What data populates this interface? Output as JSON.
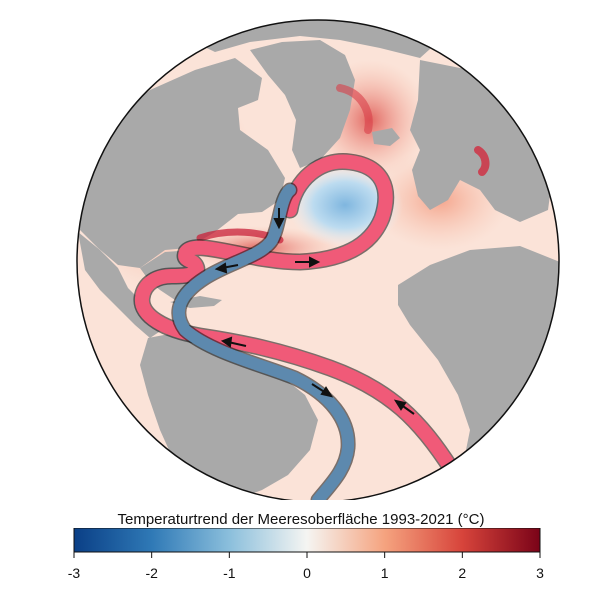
{
  "legend": {
    "title": "Temperaturtrend der Meeresoberfläche 1993-2021 (°C)",
    "ticks": [
      "-3",
      "-2",
      "-1",
      "0",
      "1",
      "2",
      "3"
    ],
    "range": [
      -3,
      3
    ],
    "colors": [
      "#0a3f86",
      "#2f79b6",
      "#8bbfdc",
      "#f5f5f2",
      "#f5a37f",
      "#d7443b",
      "#7a0318"
    ]
  },
  "map": {
    "ocean_base_color": "#fbe3d8",
    "land_color": "#a9a9a9",
    "warm_current_color": "#f05a78",
    "cold_current_color": "#5d89ae",
    "arrow_color": "#111111"
  }
}
